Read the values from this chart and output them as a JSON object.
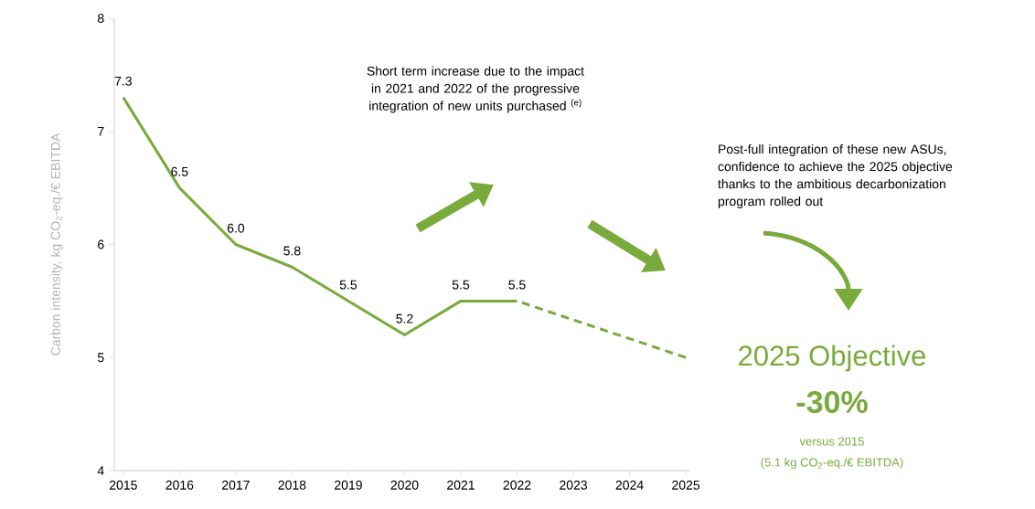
{
  "chart_data": {
    "type": "line",
    "ylabel": "Carbon intensity, kg CO$_{2}$-eq./€ EBITDA",
    "xlim": [
      2014.84,
      2025.08
    ],
    "ylim": [
      4,
      8
    ],
    "xticks": [
      2015,
      2016,
      2017,
      2018,
      2019,
      2020,
      2021,
      2022,
      2023,
      2024,
      2025
    ],
    "yticks": [
      4,
      5,
      6,
      7,
      8
    ],
    "series": [
      {
        "color": "#78aa3c",
        "x": [
          2015,
          2016,
          2017,
          2018,
          2019,
          2020,
          2021,
          2022
        ],
        "values": [
          7.3,
          6.5,
          6.0,
          5.8,
          5.5,
          5.2,
          5.5,
          5.5
        ],
        "value_labels": [
          "7.3",
          "6.5",
          "6.0",
          "5.8",
          "5.5",
          "5.2",
          "5.5",
          "5.5"
        ],
        "line_style": "solid"
      },
      {
        "color": "#78aa3c",
        "x": [
          2022,
          2025
        ],
        "values": [
          5.5,
          5.0
        ],
        "line_style": "dashed"
      }
    ],
    "annotations": [
      "Short term increase due to the impact in 2021 and 2022 of the progressive integration of new units purchased $^{(e)}$",
      "Post-full integration of these new ASUs, confidence to achieve the 2025 objective thanks to the ambitious decarbonization program rolled out",
      "2025 Objective",
      "-30%",
      "versus 2015",
      "(5.1 kg CO$_{2}$-eq./€ EBITDA)"
    ],
    "marker": "none",
    "grid": false
  }
}
